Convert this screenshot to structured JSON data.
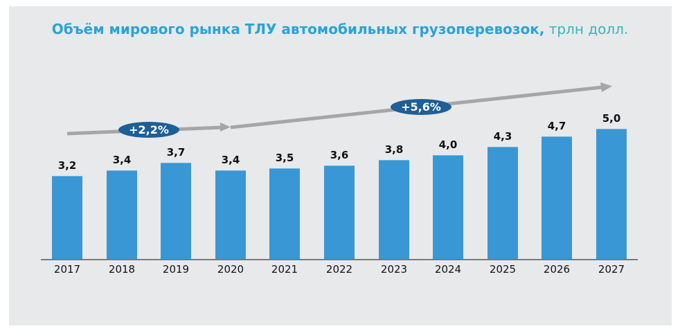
{
  "title": {
    "bold": "Объём мирового рынка ТЛУ автомобильных грузоперевозок,",
    "unit": "трлн долл."
  },
  "cagr": [
    {
      "label": "+2,2%",
      "period": "2017–2020"
    },
    {
      "label": "+5,6%",
      "period": "2020–2027"
    }
  ],
  "colors": {
    "bar": "#3a97d5",
    "badge": "#1d5f96",
    "arrow": "#a6a6a6",
    "background": "#e8e9eb",
    "title": "#2aa3d6"
  },
  "chart_data": {
    "type": "bar",
    "title": "Объём мирового рынка ТЛУ автомобильных грузоперевозок, трлн долл.",
    "xlabel": "",
    "ylabel": "трлн долл.",
    "categories": [
      "2017",
      "2018",
      "2019",
      "2020",
      "2021",
      "2022",
      "2023",
      "2024",
      "2025",
      "2026",
      "2027"
    ],
    "values": [
      3.2,
      3.4,
      3.7,
      3.4,
      3.5,
      3.6,
      3.8,
      4.0,
      4.3,
      4.7,
      5.0
    ],
    "value_labels": [
      "3,2",
      "3,4",
      "3,7",
      "3,4",
      "3,5",
      "3,6",
      "3,8",
      "4,0",
      "4,3",
      "4,7",
      "5,0"
    ],
    "annotations": [
      {
        "text": "+2,2%",
        "type": "CAGR arrow",
        "from": "2017",
        "to": "2020"
      },
      {
        "text": "+5,6%",
        "type": "CAGR arrow",
        "from": "2020",
        "to": "2027"
      }
    ],
    "ylim": [
      0,
      5.5
    ],
    "grid": false,
    "legend": null
  }
}
